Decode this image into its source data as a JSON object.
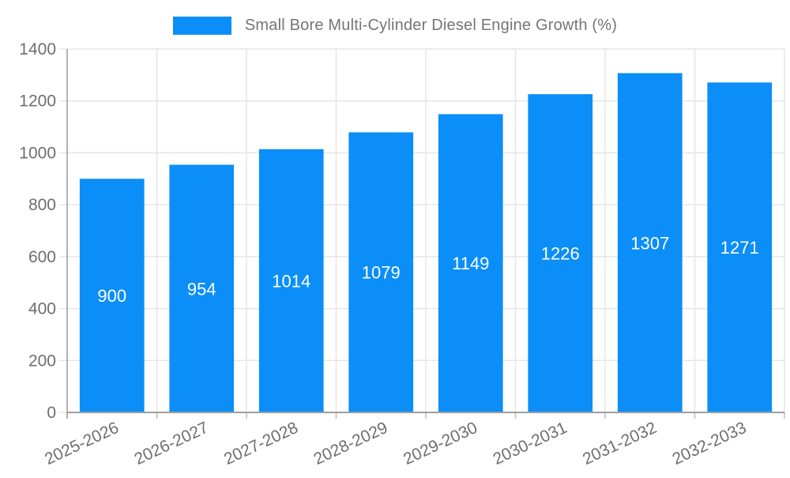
{
  "chart_data": {
    "type": "bar",
    "title": "Small Bore Multi-Cylinder Diesel Engine Growth (%)",
    "xlabel": "",
    "ylabel": "",
    "categories": [
      "2025-2026",
      "2026-2027",
      "2027-2028",
      "2028-2029",
      "2029-2030",
      "2030-2031",
      "2031-2032",
      "2032-2033"
    ],
    "values": [
      900,
      954,
      1014,
      1079,
      1149,
      1226,
      1307,
      1271
    ],
    "ylim": [
      0,
      1400
    ],
    "yticks": [
      0,
      200,
      400,
      600,
      800,
      1000,
      1200,
      1400
    ],
    "grid": "on",
    "legend_position": "top-center",
    "bar_label_position": "inside-center",
    "x_tick_rotation_deg": -25,
    "colors": {
      "bar": "#0b8ef8",
      "grid": "#e6e6e6",
      "axis_line": "#9e9e9e",
      "axis_text": "#6e6e6e",
      "bar_label": "#ffffff",
      "legend_text": "#757575"
    }
  }
}
